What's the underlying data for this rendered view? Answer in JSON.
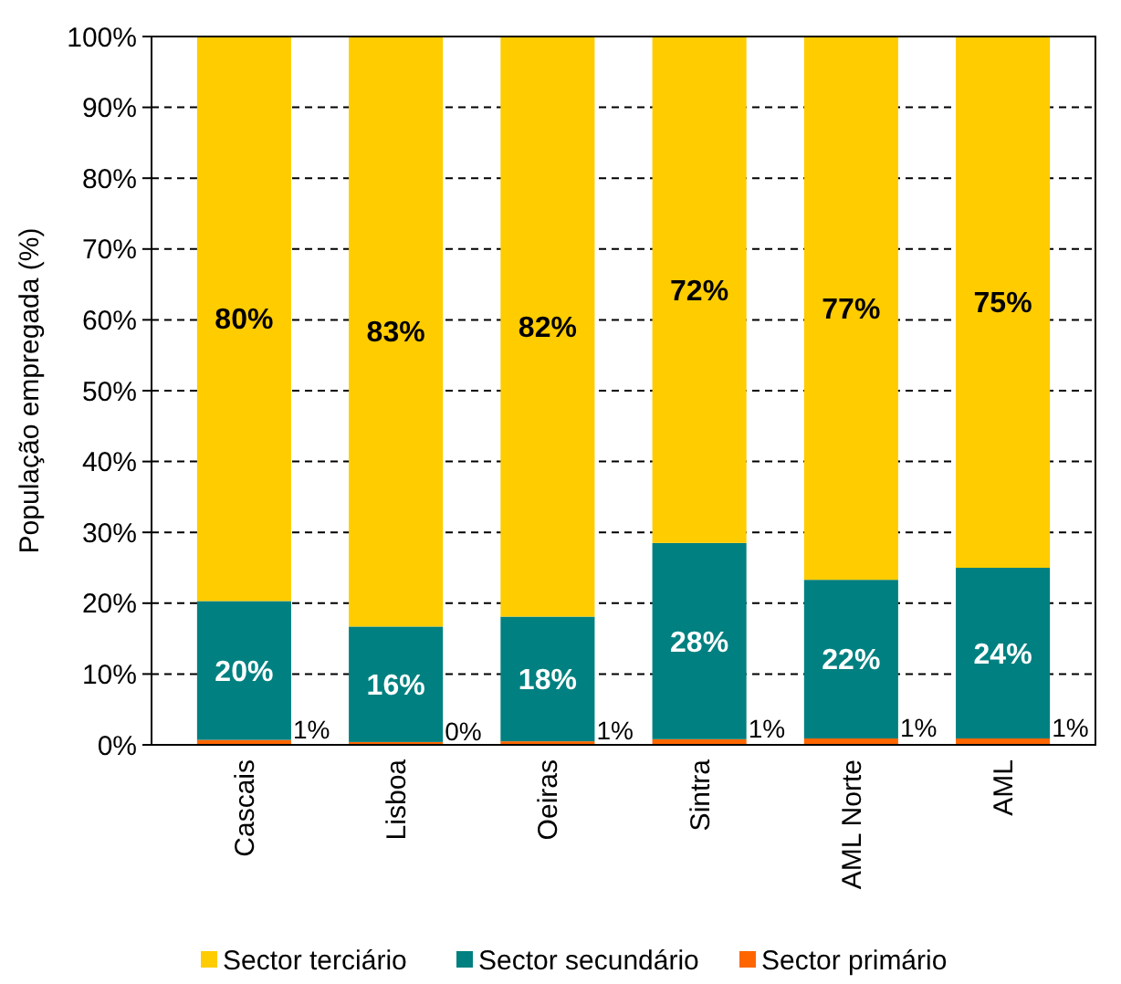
{
  "chart_data": {
    "type": "bar",
    "stacked": true,
    "ylabel": "População empregada (%)",
    "categories": [
      "Cascais",
      "Lisboa",
      "Oeiras",
      "Sintra",
      "AML Norte",
      "AML"
    ],
    "series": [
      {
        "name": "Sector primário",
        "color": "#ff6600",
        "values": [
          0.7,
          0.4,
          0.5,
          0.8,
          0.9,
          0.9
        ],
        "value_labels": [
          "1%",
          "0%",
          "1%",
          "1%",
          "1%",
          "1%"
        ]
      },
      {
        "name": "Sector secundário",
        "color": "#008080",
        "values": [
          19.6,
          16.3,
          17.6,
          27.7,
          22.4,
          24.1
        ],
        "value_labels": [
          "20%",
          "16%",
          "18%",
          "28%",
          "22%",
          "24%"
        ]
      },
      {
        "name": "Sector terciário",
        "color": "#ffcc00",
        "values": [
          79.7,
          83.3,
          81.9,
          71.5,
          76.7,
          75.0
        ],
        "value_labels": [
          "80%",
          "83%",
          "82%",
          "72%",
          "77%",
          "75%"
        ]
      }
    ],
    "ylim": [
      0,
      100
    ],
    "yticks": [
      {
        "value": 0,
        "label": "0%"
      },
      {
        "value": 10,
        "label": "10%"
      },
      {
        "value": 20,
        "label": "20%"
      },
      {
        "value": 30,
        "label": "30%"
      },
      {
        "value": 40,
        "label": "40%"
      },
      {
        "value": 50,
        "label": "50%"
      },
      {
        "value": 60,
        "label": "60%"
      },
      {
        "value": 70,
        "label": "70%"
      },
      {
        "value": 80,
        "label": "80%"
      },
      {
        "value": 90,
        "label": "90%"
      },
      {
        "value": 100,
        "label": "100%"
      }
    ],
    "grid": "y",
    "legend": "bottom"
  }
}
